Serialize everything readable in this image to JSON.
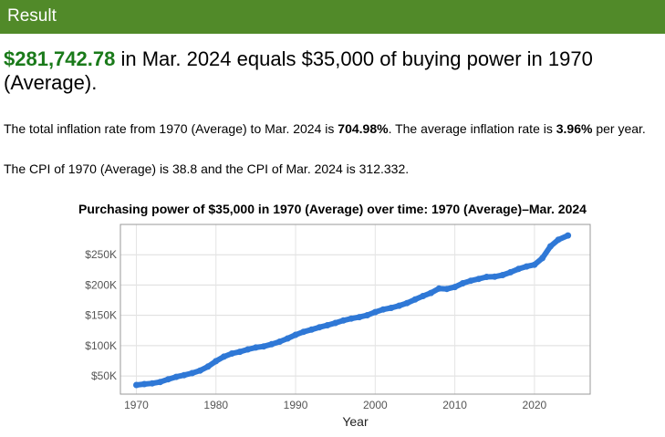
{
  "header": {
    "title": "Result"
  },
  "headline": {
    "amount": "$281,742.78",
    "text": " in Mar. 2024 equals $35,000 of buying power in 1970 (Average)."
  },
  "details": {
    "rate_prefix": "The total inflation rate from 1970 (Average) to Mar. 2024 is ",
    "total_rate": "704.98%",
    "rate_middle": ". The average inflation rate is ",
    "avg_rate": "3.96%",
    "rate_suffix": " per year.",
    "cpi_text": "The CPI of 1970 (Average) is 38.8 and the CPI of Mar. 2024 is 312.332."
  },
  "colors": {
    "header_bg": "#518a29",
    "amount": "#1a7a1a",
    "line": "#2f78d6"
  },
  "chart_data": {
    "type": "line",
    "title": "Purchasing power of $35,000 in 1970 (Average) over time: 1970 (Average)–Mar. 2024",
    "xlabel": "Year",
    "ylabel": "",
    "xlim": [
      1968,
      2027
    ],
    "ylim": [
      20000,
      300000
    ],
    "x_ticks": [
      1970,
      1980,
      1990,
      2000,
      2010,
      2020
    ],
    "x_tick_labels": [
      "1970",
      "1980",
      "1990",
      "2000",
      "2010",
      "2020"
    ],
    "y_ticks": [
      50000,
      100000,
      150000,
      200000,
      250000
    ],
    "y_tick_labels": [
      "$50K",
      "$100K",
      "$150K",
      "$200K",
      "$250K"
    ],
    "grid": true,
    "series": [
      {
        "name": "Purchasing power",
        "x": [
          1970,
          1971,
          1972,
          1973,
          1974,
          1975,
          1976,
          1977,
          1978,
          1979,
          1980,
          1981,
          1982,
          1983,
          1984,
          1985,
          1986,
          1987,
          1988,
          1989,
          1990,
          1991,
          1992,
          1993,
          1994,
          1995,
          1996,
          1997,
          1998,
          1999,
          2000,
          2001,
          2002,
          2003,
          2004,
          2005,
          2006,
          2007,
          2008,
          2009,
          2010,
          2011,
          2012,
          2013,
          2014,
          2015,
          2016,
          2017,
          2018,
          2019,
          2020,
          2021,
          2022,
          2023,
          2024.2
        ],
        "values": [
          35000,
          36500,
          37700,
          40000,
          44500,
          48500,
          51300,
          54600,
          58800,
          65400,
          74300,
          81900,
          87000,
          89800,
          93700,
          97000,
          98800,
          102400,
          106600,
          111800,
          117800,
          122800,
          126500,
          130300,
          133600,
          137400,
          141500,
          144700,
          147000,
          150200,
          155300,
          159700,
          162200,
          165900,
          170300,
          176100,
          181800,
          187000,
          194100,
          193500,
          196700,
          202900,
          207100,
          210100,
          213500,
          213800,
          216500,
          221100,
          226500,
          230600,
          233400,
          244400,
          263900,
          274800,
          281743
        ]
      }
    ]
  }
}
